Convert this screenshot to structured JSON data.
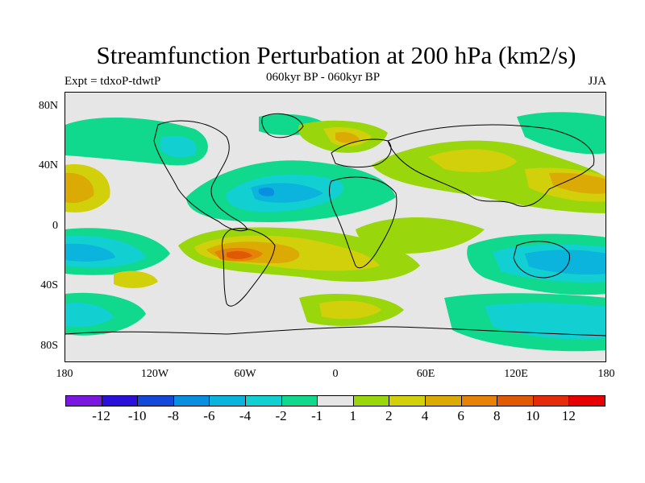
{
  "title": "Streamfunction Perturbation at 200 hPa (km2/s)",
  "left_string": "Expt = tdxoP-tdwtP",
  "center_string": "060kyr BP - 060kyr BP",
  "right_string": "JJA",
  "lat_ticks": [
    "80N",
    "40N",
    "0",
    "40S",
    "80S"
  ],
  "lon_ticks": [
    "180",
    "120W",
    "60W",
    "0",
    "60E",
    "120E",
    "180"
  ],
  "colorbar": {
    "labels": [
      "-12",
      "-10",
      "-8",
      "-6",
      "-4",
      "-2",
      "-1",
      "1",
      "2",
      "4",
      "6",
      "8",
      "10",
      "12"
    ],
    "colors": [
      "#7a18e0",
      "#2a10d8",
      "#1448d8",
      "#0a8ee0",
      "#0ab4dc",
      "#12cfd2",
      "#10d88c",
      "#e6e6e6",
      "#9ad60c",
      "#d2d00a",
      "#dcaa04",
      "#e68208",
      "#e05a06",
      "#e42c0a",
      "#e60000"
    ]
  },
  "colors": {
    "land_outline": "#000000",
    "background": "#e6e6e6"
  }
}
